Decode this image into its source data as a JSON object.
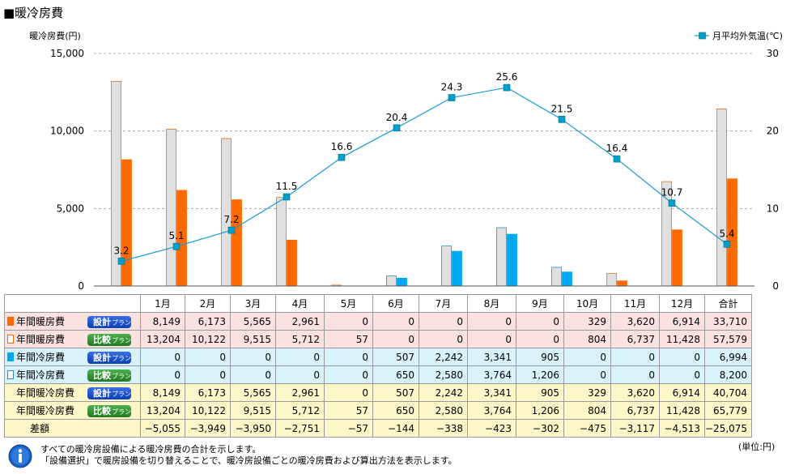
{
  "title": "■暖冷房費",
  "chart_data": {
    "type": "bar+line",
    "categories": [
      "1月",
      "2月",
      "3月",
      "4月",
      "5月",
      "6月",
      "7月",
      "8月",
      "9月",
      "10月",
      "11月",
      "12月"
    ],
    "y_left": {
      "label": "暖冷房費(円)",
      "range": [
        0,
        15000
      ],
      "ticks": [
        "0",
        "5,000",
        "10,000",
        "15,000"
      ]
    },
    "y_right": {
      "label": "月平均外気温(℃)",
      "range": [
        0,
        30
      ],
      "ticks": [
        "0",
        "10",
        "20",
        "30"
      ]
    },
    "grid": true,
    "legend": {
      "position": "top-right",
      "entries": [
        "月平均外気温(℃)"
      ]
    },
    "bar_series": [
      {
        "values": [
          13204,
          10122,
          9515,
          5712,
          57,
          0,
          0,
          0,
          0,
          804,
          6737,
          11428
        ],
        "color": "#e0e0e0",
        "stroke": "#e86e10",
        "slot": 0
      },
      {
        "values": [
          8149,
          6173,
          5565,
          2961,
          0,
          0,
          0,
          0,
          0,
          329,
          3620,
          6914
        ],
        "color": "#ff6a00",
        "stroke": "#ff6a00",
        "slot": 1
      },
      {
        "values": [
          0,
          0,
          0,
          0,
          0,
          650,
          2580,
          3764,
          1206,
          0,
          0,
          0
        ],
        "color": "#e0e0e0",
        "stroke": "#2a8fbf",
        "slot": 0
      },
      {
        "values": [
          0,
          0,
          0,
          0,
          0,
          507,
          2242,
          3341,
          905,
          0,
          0,
          0
        ],
        "color": "#00a8f0",
        "stroke": "#00a8f0",
        "slot": 1
      }
    ],
    "line_series": {
      "name": "月平均外気温(℃)",
      "values": [
        3.2,
        5.1,
        7.2,
        11.5,
        16.6,
        20.4,
        24.3,
        25.6,
        21.5,
        16.4,
        10.7,
        5.4
      ],
      "labels": [
        "3.2",
        "5.1",
        "7.2",
        "11.5",
        "16.6",
        "20.4",
        "24.3",
        "25.6",
        "21.5",
        "16.4",
        "10.7",
        "5.4"
      ],
      "color": "#1a9ad6",
      "marker_color": "#00a0c8"
    }
  },
  "table": {
    "header": [
      "1月",
      "2月",
      "3月",
      "4月",
      "5月",
      "6月",
      "7月",
      "8月",
      "9月",
      "10月",
      "11月",
      "12月",
      "合計"
    ],
    "rows": [
      {
        "label": "年間暖房費",
        "plan": "設計",
        "plan_suffix": "プラン",
        "button": "blue",
        "marker": "heat-solid",
        "style": "heat-r",
        "values": [
          "8,149",
          "6,173",
          "5,565",
          "2,961",
          "0",
          "0",
          "0",
          "0",
          "0",
          "329",
          "3,620",
          "6,914",
          "33,710"
        ]
      },
      {
        "label": "年間暖房費",
        "plan": "比較",
        "plan_suffix": "プラン",
        "button": "green",
        "marker": "heat-outline",
        "style": "heat-r",
        "values": [
          "13,204",
          "10,122",
          "9,515",
          "5,712",
          "57",
          "0",
          "0",
          "0",
          "0",
          "804",
          "6,737",
          "11,428",
          "57,579"
        ]
      },
      {
        "label": "年間冷房費",
        "plan": "設計",
        "plan_suffix": "プラン",
        "button": "blue",
        "marker": "cool-solid",
        "style": "cool-r",
        "values": [
          "0",
          "0",
          "0",
          "0",
          "0",
          "507",
          "2,242",
          "3,341",
          "905",
          "0",
          "0",
          "0",
          "6,994"
        ]
      },
      {
        "label": "年間冷房費",
        "plan": "比較",
        "plan_suffix": "プラン",
        "button": "green",
        "marker": "cool-outline",
        "style": "cool-r",
        "values": [
          "0",
          "0",
          "0",
          "0",
          "0",
          "650",
          "2,580",
          "3,764",
          "1,206",
          "0",
          "0",
          "0",
          "8,200"
        ]
      },
      {
        "label": "年間暖冷房費",
        "plan": "設計",
        "plan_suffix": "プラン",
        "button": "blue",
        "marker": "none",
        "style": "tot-r",
        "values": [
          "8,149",
          "6,173",
          "5,565",
          "2,961",
          "0",
          "507",
          "2,242",
          "3,341",
          "905",
          "329",
          "3,620",
          "6,914",
          "40,704"
        ]
      },
      {
        "label": "年間暖冷房費",
        "plan": "比較",
        "plan_suffix": "プラン",
        "button": "green",
        "marker": "none",
        "style": "tot-r",
        "values": [
          "13,204",
          "10,122",
          "9,515",
          "5,712",
          "57",
          "650",
          "2,580",
          "3,764",
          "1,206",
          "804",
          "6,737",
          "11,428",
          "65,779"
        ]
      }
    ],
    "diff": {
      "label": "差額",
      "values": [
        "−5,055",
        "−3,949",
        "−3,950",
        "−2,751",
        "−57",
        "−144",
        "−338",
        "−423",
        "−302",
        "−475",
        "−3,117",
        "−4,513",
        "−25,075"
      ]
    }
  },
  "unit": "(単位:円)",
  "notes": [
    "すべての暖冷房設備による暖冷房費の合計を示します。",
    "「設備選択」で暖房設備を切り替えることで、暖冷房設備ごとの暖冷房費および算出方法を表示します。"
  ],
  "icons": {
    "info": "info-icon",
    "legend_marker": "square-marker-icon"
  }
}
